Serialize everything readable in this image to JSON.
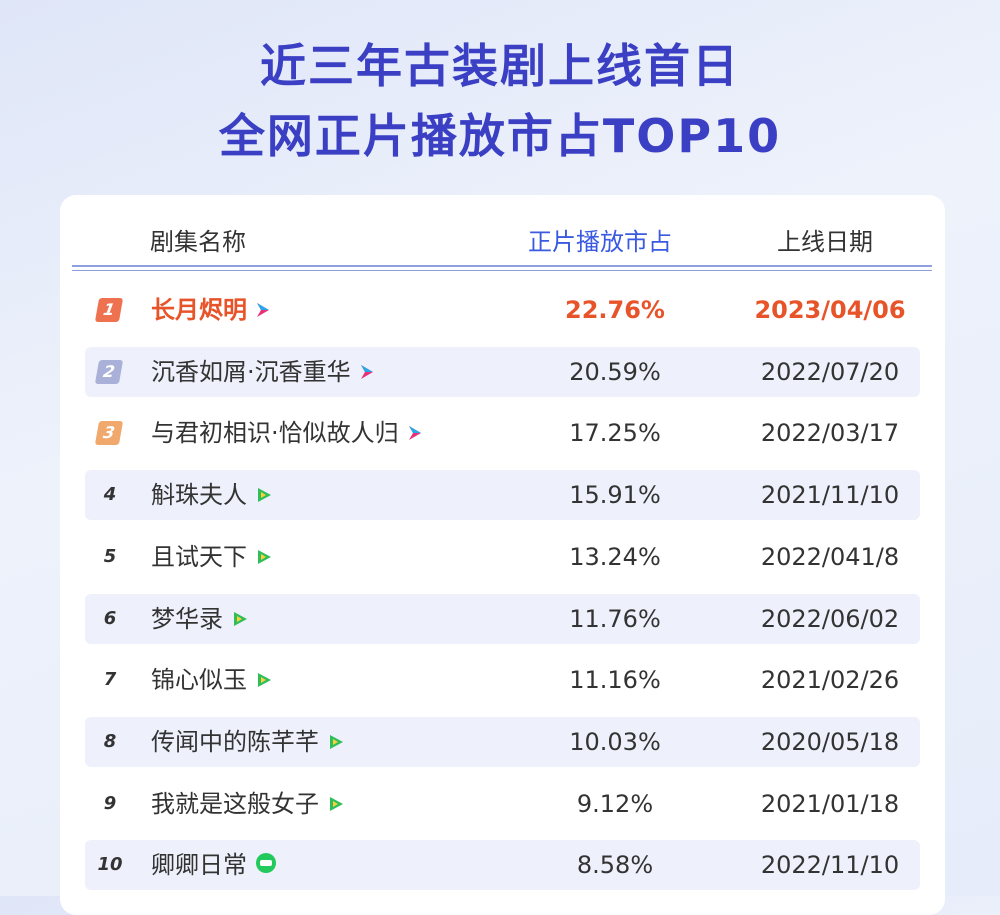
{
  "title": [
    "近三年古装剧上线首日",
    "全网正片播放市占TOP10"
  ],
  "table": {
    "headers": [
      "剧集名称",
      "正片播放市占",
      "上线日期"
    ],
    "rows": [
      [
        "1",
        "长月烬明",
        "22.76%",
        "2023/04/06"
      ],
      [
        "2",
        "沉香如屑·沉香重华",
        "20.59%",
        "2022/07/20"
      ],
      [
        "3",
        "与君初相识·恰似故人归",
        "17.25%",
        "2022/03/17"
      ],
      [
        "4",
        "斛珠夫人",
        "15.91%",
        "2021/11/10"
      ],
      [
        "5",
        "且试天下",
        "13.24%",
        "2022/041/8"
      ],
      [
        "6",
        "梦华录",
        "11.76%",
        "2022/06/02"
      ],
      [
        "7",
        "锦心似玉",
        "11.16%",
        "2021/02/26"
      ],
      [
        "8",
        "传闻中的陈芊芊",
        "10.03%",
        "2020/05/18"
      ],
      [
        "9",
        "我就是这般女子",
        "9.12%",
        "2021/01/18"
      ],
      [
        "10",
        "卿卿日常",
        "8.58%",
        "2022/11/10"
      ]
    ]
  }
}
